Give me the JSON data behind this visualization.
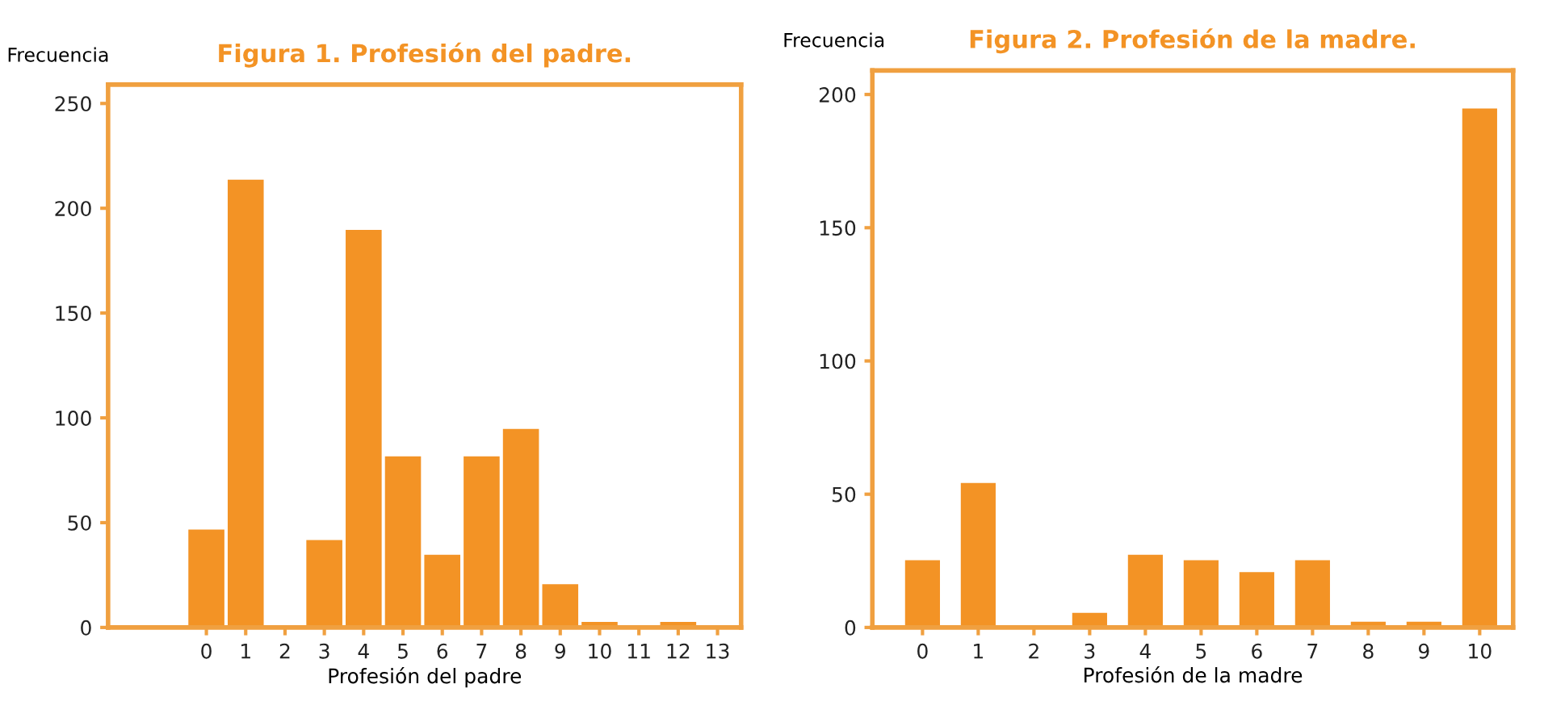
{
  "chart_data": [
    {
      "type": "bar",
      "title": "Figura 1. Profesión del padre.",
      "xlabel": "Profesión del padre",
      "ylabel": "Frecuencia",
      "categories": [
        "0",
        "1",
        "2",
        "3",
        "4",
        "5",
        "6",
        "7",
        "8",
        "9",
        "10",
        "11",
        "12",
        "13"
      ],
      "values": [
        47,
        214,
        1,
        42,
        190,
        82,
        35,
        82,
        95,
        21,
        3,
        1,
        3,
        1
      ],
      "color": "#f39325",
      "ylim": [
        0,
        259
      ],
      "yticks": [
        0,
        50,
        100,
        150,
        200,
        250
      ],
      "grid": false,
      "legend": false
    },
    {
      "type": "bar",
      "title": "Figura 2. Profesión de la madre.",
      "xlabel": "Profesión de la madre",
      "ylabel": "Frecuencia",
      "categories": [
        "0",
        "1",
        "2",
        "3",
        "4",
        "5",
        "6",
        "7",
        "8",
        "9",
        "10"
      ],
      "values": [
        25.5,
        54.5,
        0,
        5.7,
        27.5,
        25.5,
        21,
        25.5,
        2.4,
        2.4,
        195
      ],
      "color": "#f39325",
      "ylim": [
        0,
        209
      ],
      "yticks": [
        0,
        50,
        100,
        150,
        200
      ],
      "grid": false,
      "legend": false
    }
  ]
}
